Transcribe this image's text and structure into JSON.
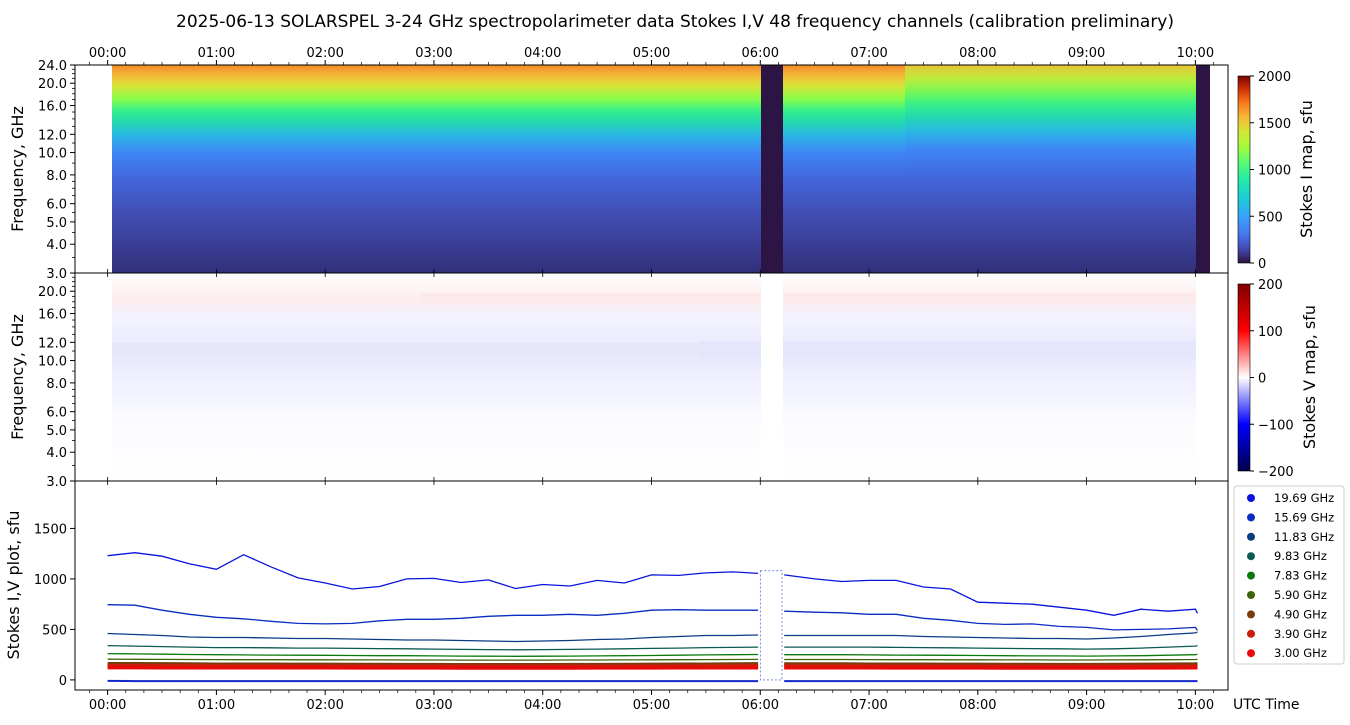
{
  "title": "2025-06-13  SOLARSPEL  3-24 GHz spectropolarimeter data   Stokes I,V   48 frequency channels   (calibration preliminary)",
  "time_axis": {
    "label": "UTC Time",
    "ticks": [
      "00:00",
      "01:00",
      "02:00",
      "03:00",
      "04:00",
      "05:00",
      "06:00",
      "07:00",
      "08:00",
      "09:00",
      "10:00"
    ]
  },
  "chart_data": [
    {
      "type": "heatmap",
      "name": "stokes-i-map",
      "ylabel": "Frequency, GHz",
      "y_scale": "log",
      "ylim": [
        3.0,
        24.0
      ],
      "y_ticks": [
        "24.0",
        "20.0",
        "16.0",
        "12.0",
        "10.0",
        "8.0",
        "6.0",
        "5.0",
        "4.0",
        "3.0"
      ],
      "y_tick_values": [
        24,
        20,
        16,
        12,
        10,
        8,
        6,
        5,
        4,
        3
      ],
      "xlim": [
        -0.3,
        10.3
      ],
      "data_range_hours": [
        0.0,
        10.15
      ],
      "gaps_hours": [
        [
          6.0,
          6.2
        ],
        [
          10.02,
          10.15
        ]
      ],
      "colorbar": {
        "label": "Stokes I map, sfu",
        "ticks": [
          "2000",
          "1500",
          "1000",
          "500",
          "0"
        ],
        "tick_values": [
          2000,
          1500,
          1000,
          500,
          0
        ],
        "range": [
          0,
          2000
        ],
        "colormap": "turbo"
      }
    },
    {
      "type": "heatmap",
      "name": "stokes-v-map",
      "ylabel": "Frequency, GHz",
      "y_scale": "log",
      "ylim": [
        3.0,
        24.0
      ],
      "y_ticks": [
        "20.0",
        "16.0",
        "12.0",
        "10.0",
        "8.0",
        "6.0",
        "5.0",
        "4.0",
        "3.0"
      ],
      "y_tick_values": [
        20,
        16,
        12,
        10,
        8,
        6,
        5,
        4,
        3
      ],
      "xlim": [
        -0.3,
        10.3
      ],
      "colorbar": {
        "label": "Stokes V map, sfu",
        "ticks": [
          "200",
          "100",
          "0",
          "−100",
          "−200"
        ],
        "tick_values": [
          200,
          100,
          0,
          -100,
          -200
        ],
        "range": [
          -200,
          200
        ],
        "colormap": "seismic"
      }
    },
    {
      "type": "line",
      "name": "stokes-iv-plot",
      "ylabel": "Stokes I,V plot, sfu",
      "xlabel": "UTC Time",
      "xlim": [
        -0.3,
        10.3
      ],
      "ylim": [
        -100,
        1950
      ],
      "y_ticks": [
        "1500",
        "1000",
        "500",
        "0"
      ],
      "y_tick_values": [
        1500,
        1000,
        500,
        0
      ],
      "x_hours": [
        0.0,
        0.25,
        0.5,
        0.75,
        1.0,
        1.25,
        1.5,
        1.75,
        2.0,
        2.25,
        2.5,
        2.75,
        3.0,
        3.25,
        3.5,
        3.75,
        4.0,
        4.25,
        4.5,
        4.75,
        5.0,
        5.25,
        5.5,
        5.75,
        5.98,
        6.22,
        6.5,
        6.75,
        7.0,
        7.25,
        7.5,
        7.75,
        8.0,
        8.25,
        8.5,
        8.75,
        9.0,
        9.25,
        9.5,
        9.75,
        10.0,
        10.02
      ],
      "series": [
        {
          "name": "19.69 GHz",
          "color": "#0a14dc",
          "values": [
            1230,
            1260,
            1225,
            1150,
            1095,
            1240,
            1120,
            1010,
            960,
            900,
            925,
            1000,
            1005,
            965,
            990,
            905,
            945,
            930,
            985,
            960,
            1040,
            1035,
            1060,
            1070,
            1055,
            1040,
            1000,
            975,
            985,
            985,
            920,
            900,
            770,
            760,
            750,
            720,
            690,
            640,
            700,
            680,
            700,
            660
          ]
        },
        {
          "name": "15.69 GHz",
          "color": "#0a2cc0",
          "values": [
            745,
            740,
            690,
            650,
            620,
            605,
            580,
            560,
            555,
            560,
            585,
            600,
            600,
            610,
            630,
            640,
            640,
            650,
            640,
            660,
            690,
            695,
            690,
            690,
            690,
            680,
            670,
            665,
            650,
            650,
            610,
            590,
            560,
            550,
            555,
            530,
            520,
            495,
            500,
            505,
            520,
            490
          ]
        },
        {
          "name": "11.83 GHz",
          "color": "#0a3c82",
          "values": [
            460,
            450,
            440,
            425,
            420,
            420,
            415,
            410,
            410,
            405,
            400,
            395,
            395,
            390,
            385,
            380,
            385,
            390,
            400,
            405,
            420,
            430,
            440,
            440,
            445,
            440,
            440,
            440,
            440,
            440,
            430,
            425,
            420,
            415,
            410,
            410,
            405,
            415,
            430,
            450,
            465,
            475
          ]
        },
        {
          "name": "9.83 GHz",
          "color": "#0a5a50",
          "values": [
            340,
            335,
            330,
            325,
            320,
            320,
            318,
            315,
            315,
            312,
            310,
            308,
            305,
            302,
            300,
            298,
            300,
            302,
            305,
            308,
            312,
            315,
            320,
            322,
            325,
            325,
            325,
            325,
            325,
            322,
            320,
            318,
            315,
            312,
            310,
            308,
            305,
            308,
            315,
            325,
            335,
            340
          ]
        },
        {
          "name": "7.83 GHz",
          "color": "#0a7a0a",
          "values": [
            260,
            258,
            255,
            252,
            250,
            248,
            246,
            245,
            244,
            242,
            240,
            240,
            238,
            236,
            235,
            234,
            235,
            236,
            238,
            240,
            242,
            245,
            248,
            250,
            252,
            250,
            250,
            250,
            248,
            246,
            245,
            244,
            242,
            240,
            238,
            238,
            236,
            238,
            240,
            245,
            250,
            255
          ]
        },
        {
          "name": "5.90 GHz",
          "color": "#3c640a",
          "values": [
            205,
            204,
            203,
            202,
            201,
            200,
            200,
            199,
            199,
            198,
            198,
            197,
            197,
            196,
            196,
            196,
            196,
            197,
            197,
            198,
            199,
            200,
            201,
            202,
            203,
            202,
            202,
            202,
            201,
            200,
            200,
            199,
            199,
            198,
            198,
            197,
            197,
            198,
            199,
            200,
            202,
            203
          ]
        },
        {
          "name": "4.90 GHz",
          "color": "#7a3c0a",
          "values": [
            160,
            159,
            158,
            157,
            156,
            155,
            155,
            154,
            154,
            153,
            153,
            152,
            152,
            151,
            151,
            151,
            151,
            152,
            152,
            153,
            154,
            155,
            156,
            157,
            158,
            157,
            157,
            157,
            156,
            155,
            155,
            154,
            154,
            153,
            153,
            152,
            152,
            153,
            154,
            155,
            157,
            158
          ]
        },
        {
          "name": "3.90 GHz",
          "color": "#c81e0a",
          "values": [
            140,
            140,
            139,
            139,
            138,
            138,
            138,
            137,
            137,
            137,
            136,
            136,
            136,
            135,
            135,
            135,
            135,
            135,
            136,
            136,
            137,
            137,
            138,
            138,
            139,
            138,
            138,
            138,
            138,
            137,
            137,
            137,
            136,
            136,
            136,
            135,
            135,
            136,
            136,
            137,
            138,
            139
          ]
        },
        {
          "name": "3.00 GHz",
          "color": "#e60a0a",
          "values": [
            122,
            122,
            121,
            121,
            121,
            120,
            120,
            120,
            120,
            119,
            119,
            119,
            119,
            118,
            118,
            118,
            118,
            118,
            119,
            119,
            119,
            120,
            120,
            120,
            121,
            120,
            120,
            120,
            120,
            119,
            119,
            119,
            119,
            118,
            118,
            118,
            118,
            118,
            119,
            119,
            120,
            121
          ]
        }
      ],
      "v_series_color": "#1428c8",
      "v_values_approx": [
        -10,
        -12,
        -12,
        -12,
        -12,
        -12,
        -12,
        -12,
        -12,
        -12,
        -12,
        -12,
        -12,
        -12,
        -12,
        -12,
        -12,
        -12,
        -12,
        -12,
        -12,
        -12,
        -12,
        -12,
        -12,
        -12,
        -12,
        -12,
        -12,
        -12,
        -12,
        -12,
        -12,
        -12,
        -12,
        -12,
        -12,
        -12,
        -12,
        -12,
        -12,
        -12
      ],
      "legend_placement": "right"
    }
  ]
}
